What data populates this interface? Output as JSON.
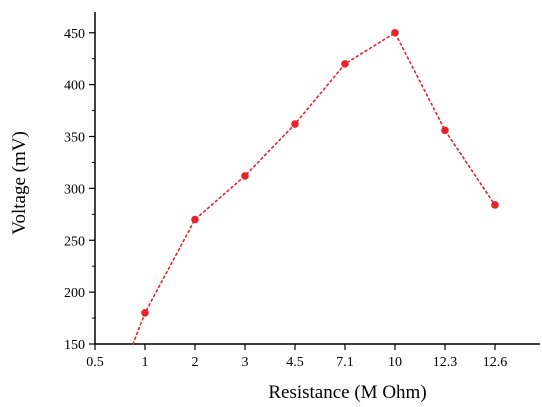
{
  "chart_data": {
    "type": "line",
    "xlabel": "Resistance (M Ohm)",
    "ylabel": "Voltage (mV)",
    "categories": [
      "0.5",
      "1",
      "2",
      "3",
      "4.5",
      "7.1",
      "10",
      "12.3",
      "12.6"
    ],
    "series": [
      {
        "x_index": [
          0.76,
          1,
          2,
          3,
          4,
          5,
          6,
          7,
          8
        ],
        "values": [
          150,
          180,
          270,
          312,
          362,
          420,
          450,
          356,
          284
        ],
        "markers": [
          false,
          true,
          true,
          true,
          true,
          true,
          true,
          true,
          true
        ],
        "color": "#e8212b",
        "line_style": "dotted"
      }
    ],
    "xlim": [
      0,
      9
    ],
    "ylim": [
      150,
      470
    ],
    "yticks": [
      150,
      200,
      250,
      300,
      350,
      400,
      450
    ],
    "grid": false,
    "legend": "none"
  }
}
